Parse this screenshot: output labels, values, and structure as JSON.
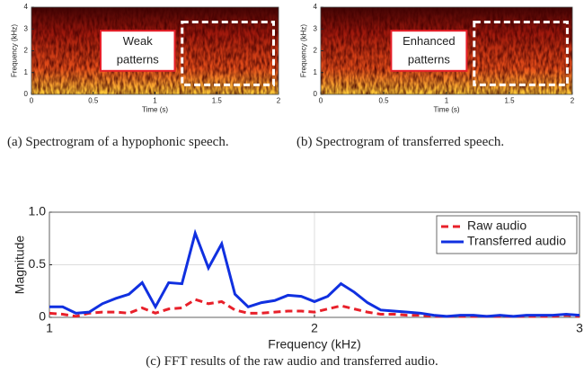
{
  "chart_data": [
    {
      "type": "spectrogram",
      "xlabel": "Time (s)",
      "ylabel": "Frequency (kHz)",
      "xlim": [
        0,
        2
      ],
      "xticks": [
        0,
        0.5,
        1,
        1.5,
        2
      ],
      "ylim": [
        0,
        4
      ],
      "yticks": [
        0,
        1,
        2,
        3,
        4
      ],
      "annotation": [
        "Weak",
        "patterns"
      ],
      "caption": "(a) Spectrogram of a hypophonic speech."
    },
    {
      "type": "spectrogram",
      "xlabel": "Time (s)",
      "ylabel": "Frequency (kHz)",
      "xlim": [
        0,
        2
      ],
      "xticks": [
        0,
        0.5,
        1,
        1.5,
        2
      ],
      "ylim": [
        0,
        4
      ],
      "yticks": [
        0,
        1,
        2,
        3,
        4
      ],
      "annotation": [
        "Enhanced",
        "patterns"
      ],
      "caption": "(b) Spectrogram of transferred speech."
    },
    {
      "type": "line",
      "xlabel": "Frequency (kHz)",
      "ylabel": "Magnitude",
      "caption": "(c) FFT results of the raw audio and transferred audio.",
      "xlim": [
        1,
        3
      ],
      "xticks": [
        1,
        2,
        3
      ],
      "ylim": [
        0,
        1
      ],
      "yticks": [
        0,
        0.5,
        {
          "value": 1,
          "label": "1.0"
        }
      ],
      "grid": true,
      "legend": "upper right",
      "x": [
        1.0,
        1.05,
        1.1,
        1.15,
        1.2,
        1.25,
        1.3,
        1.35,
        1.4,
        1.45,
        1.5,
        1.55,
        1.6,
        1.65,
        1.7,
        1.75,
        1.8,
        1.85,
        1.9,
        1.95,
        2.0,
        2.05,
        2.1,
        2.15,
        2.2,
        2.25,
        2.3,
        2.35,
        2.4,
        2.45,
        2.5,
        2.55,
        2.6,
        2.65,
        2.7,
        2.75,
        2.8,
        2.85,
        2.9,
        2.95,
        3.0
      ],
      "series": [
        {
          "name": "Raw audio",
          "color": "#e8202a",
          "dashed": true,
          "values": [
            0.04,
            0.03,
            0.01,
            0.04,
            0.05,
            0.05,
            0.04,
            0.09,
            0.04,
            0.08,
            0.09,
            0.17,
            0.13,
            0.15,
            0.07,
            0.04,
            0.04,
            0.05,
            0.06,
            0.06,
            0.05,
            0.08,
            0.11,
            0.08,
            0.05,
            0.03,
            0.03,
            0.02,
            0.02,
            0.01,
            0.01,
            0.01,
            0.01,
            0.01,
            0.01,
            0.01,
            0.01,
            0.01,
            0.01,
            0.02,
            0.01
          ]
        },
        {
          "name": "Transferred audio",
          "color": "#1030e0",
          "dashed": false,
          "values": [
            0.1,
            0.1,
            0.04,
            0.05,
            0.13,
            0.18,
            0.22,
            0.33,
            0.1,
            0.33,
            0.32,
            0.8,
            0.47,
            0.7,
            0.22,
            0.1,
            0.14,
            0.16,
            0.21,
            0.2,
            0.15,
            0.2,
            0.32,
            0.24,
            0.14,
            0.07,
            0.06,
            0.05,
            0.04,
            0.02,
            0.01,
            0.02,
            0.02,
            0.01,
            0.02,
            0.01,
            0.02,
            0.02,
            0.02,
            0.03,
            0.02
          ]
        }
      ]
    }
  ]
}
